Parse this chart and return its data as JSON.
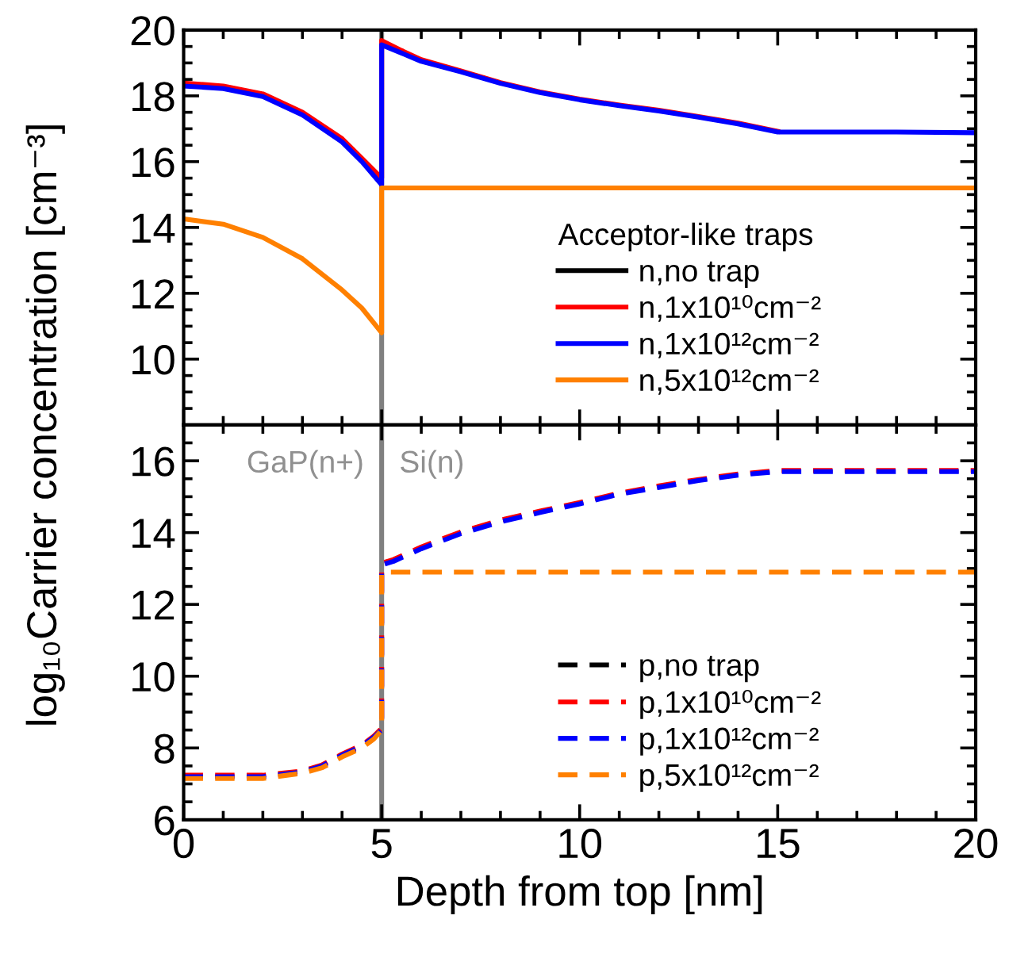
{
  "chart_data": [
    {
      "type": "line",
      "ylabel": "log₁₀Carrier concentration [cm⁻³]",
      "legend_title": "Acceptor-like traps",
      "legend": "lower right",
      "tick_labels": "y",
      "xlim": [
        0,
        20
      ],
      "xticks": [
        0,
        5,
        10,
        15,
        20
      ],
      "ylim": [
        8,
        20
      ],
      "yticks": [
        10,
        12,
        14,
        16,
        18,
        20
      ],
      "x": [
        0,
        1,
        2,
        3,
        4,
        4.5,
        5,
        5,
        5.5,
        6,
        7,
        8,
        9,
        10,
        11,
        12,
        13,
        14,
        15,
        16,
        18,
        20
      ],
      "series": [
        {
          "name": "n,no trap",
          "color": "#000000",
          "line_style": "solid",
          "values": [
            null,
            null,
            null,
            null,
            null,
            null,
            null,
            null,
            null,
            null,
            null,
            null,
            null,
            null,
            null,
            null,
            null,
            null,
            null,
            null,
            null,
            null
          ]
        },
        {
          "name": "n,1x10¹⁰cm⁻²",
          "color": "#ff0000",
          "line_style": "solid",
          "values": [
            18.39,
            18.3,
            18.06,
            17.5,
            16.7,
            16.1,
            15.5,
            19.68,
            19.38,
            19.1,
            18.76,
            18.4,
            18.12,
            17.9,
            17.72,
            17.56,
            17.37,
            17.17,
            16.92,
            null,
            null,
            null
          ]
        },
        {
          "name": "n,1x10¹²cm⁻²",
          "color": "#0000ff",
          "line_style": "solid",
          "values": [
            18.3,
            18.22,
            17.98,
            17.42,
            16.6,
            16.0,
            15.3,
            19.55,
            19.3,
            19.05,
            18.73,
            18.38,
            18.1,
            17.88,
            17.7,
            17.54,
            17.35,
            17.15,
            16.9,
            16.9,
            16.9,
            16.88
          ]
        },
        {
          "name": "n,5x10¹²cm⁻²",
          "color": "#ff8000",
          "line_style": "solid",
          "values": [
            14.26,
            14.1,
            13.7,
            13.05,
            12.1,
            11.55,
            10.8,
            15.2,
            15.2,
            15.2,
            15.2,
            15.2,
            15.2,
            15.2,
            15.2,
            15.2,
            15.2,
            15.2,
            15.2,
            15.2,
            15.2,
            15.2
          ]
        }
      ],
      "ref_lines": [
        {
          "axis": "x",
          "value": 5,
          "color": "#808080"
        }
      ]
    },
    {
      "type": "line",
      "xlabel": "Depth from top [nm]",
      "legend": "lower right",
      "xlim": [
        0,
        20
      ],
      "xticks": [
        0,
        5,
        10,
        15,
        20
      ],
      "ylim": [
        6,
        17
      ],
      "yticks": [
        6,
        8,
        10,
        12,
        14,
        16
      ],
      "x": [
        0,
        1,
        2,
        3,
        3.5,
        4,
        4.5,
        4.8,
        5,
        5,
        5.3,
        6,
        7,
        8,
        9,
        10,
        11,
        12,
        13,
        14,
        15,
        16,
        18,
        20
      ],
      "series": [
        {
          "name": "p,no trap",
          "color": "#000000",
          "line_style": "dashed",
          "values": [
            null,
            null,
            null,
            null,
            null,
            null,
            null,
            null,
            null,
            null,
            null,
            null,
            null,
            null,
            null,
            null,
            null,
            null,
            null,
            null,
            null,
            null,
            null,
            null
          ]
        },
        {
          "name": "p,1x10¹⁰cm⁻²",
          "color": "#ff0000",
          "line_style": "dashed",
          "values": [
            7.24,
            7.24,
            7.24,
            7.36,
            7.53,
            7.83,
            8.08,
            8.33,
            8.55,
            13.15,
            13.25,
            13.6,
            14.02,
            14.35,
            14.6,
            14.84,
            15.1,
            15.3,
            15.48,
            15.63,
            15.73,
            15.73,
            15.73,
            15.73
          ]
        },
        {
          "name": "p,1x10¹²cm⁻²",
          "color": "#0000ff",
          "line_style": "dashed",
          "values": [
            7.2,
            7.2,
            7.2,
            7.33,
            7.5,
            7.8,
            8.05,
            8.3,
            8.5,
            13.1,
            13.2,
            13.55,
            13.97,
            14.3,
            14.56,
            14.8,
            15.07,
            15.26,
            15.45,
            15.6,
            15.7,
            15.7,
            15.7,
            15.7
          ]
        },
        {
          "name": "p,5x10¹²cm⁻²",
          "color": "#ff8000",
          "line_style": "dashed",
          "values": [
            7.15,
            7.15,
            7.15,
            7.3,
            7.45,
            7.75,
            8.0,
            8.25,
            8.5,
            12.9,
            12.9,
            12.9,
            12.9,
            12.9,
            12.9,
            12.9,
            12.9,
            12.9,
            12.9,
            12.9,
            12.9,
            12.9,
            12.9,
            12.9
          ]
        }
      ],
      "ref_lines": [
        {
          "axis": "x",
          "value": 5,
          "color": "#808080"
        }
      ],
      "annotations": [
        "GaP(n+)",
        "Si(n)"
      ]
    }
  ]
}
